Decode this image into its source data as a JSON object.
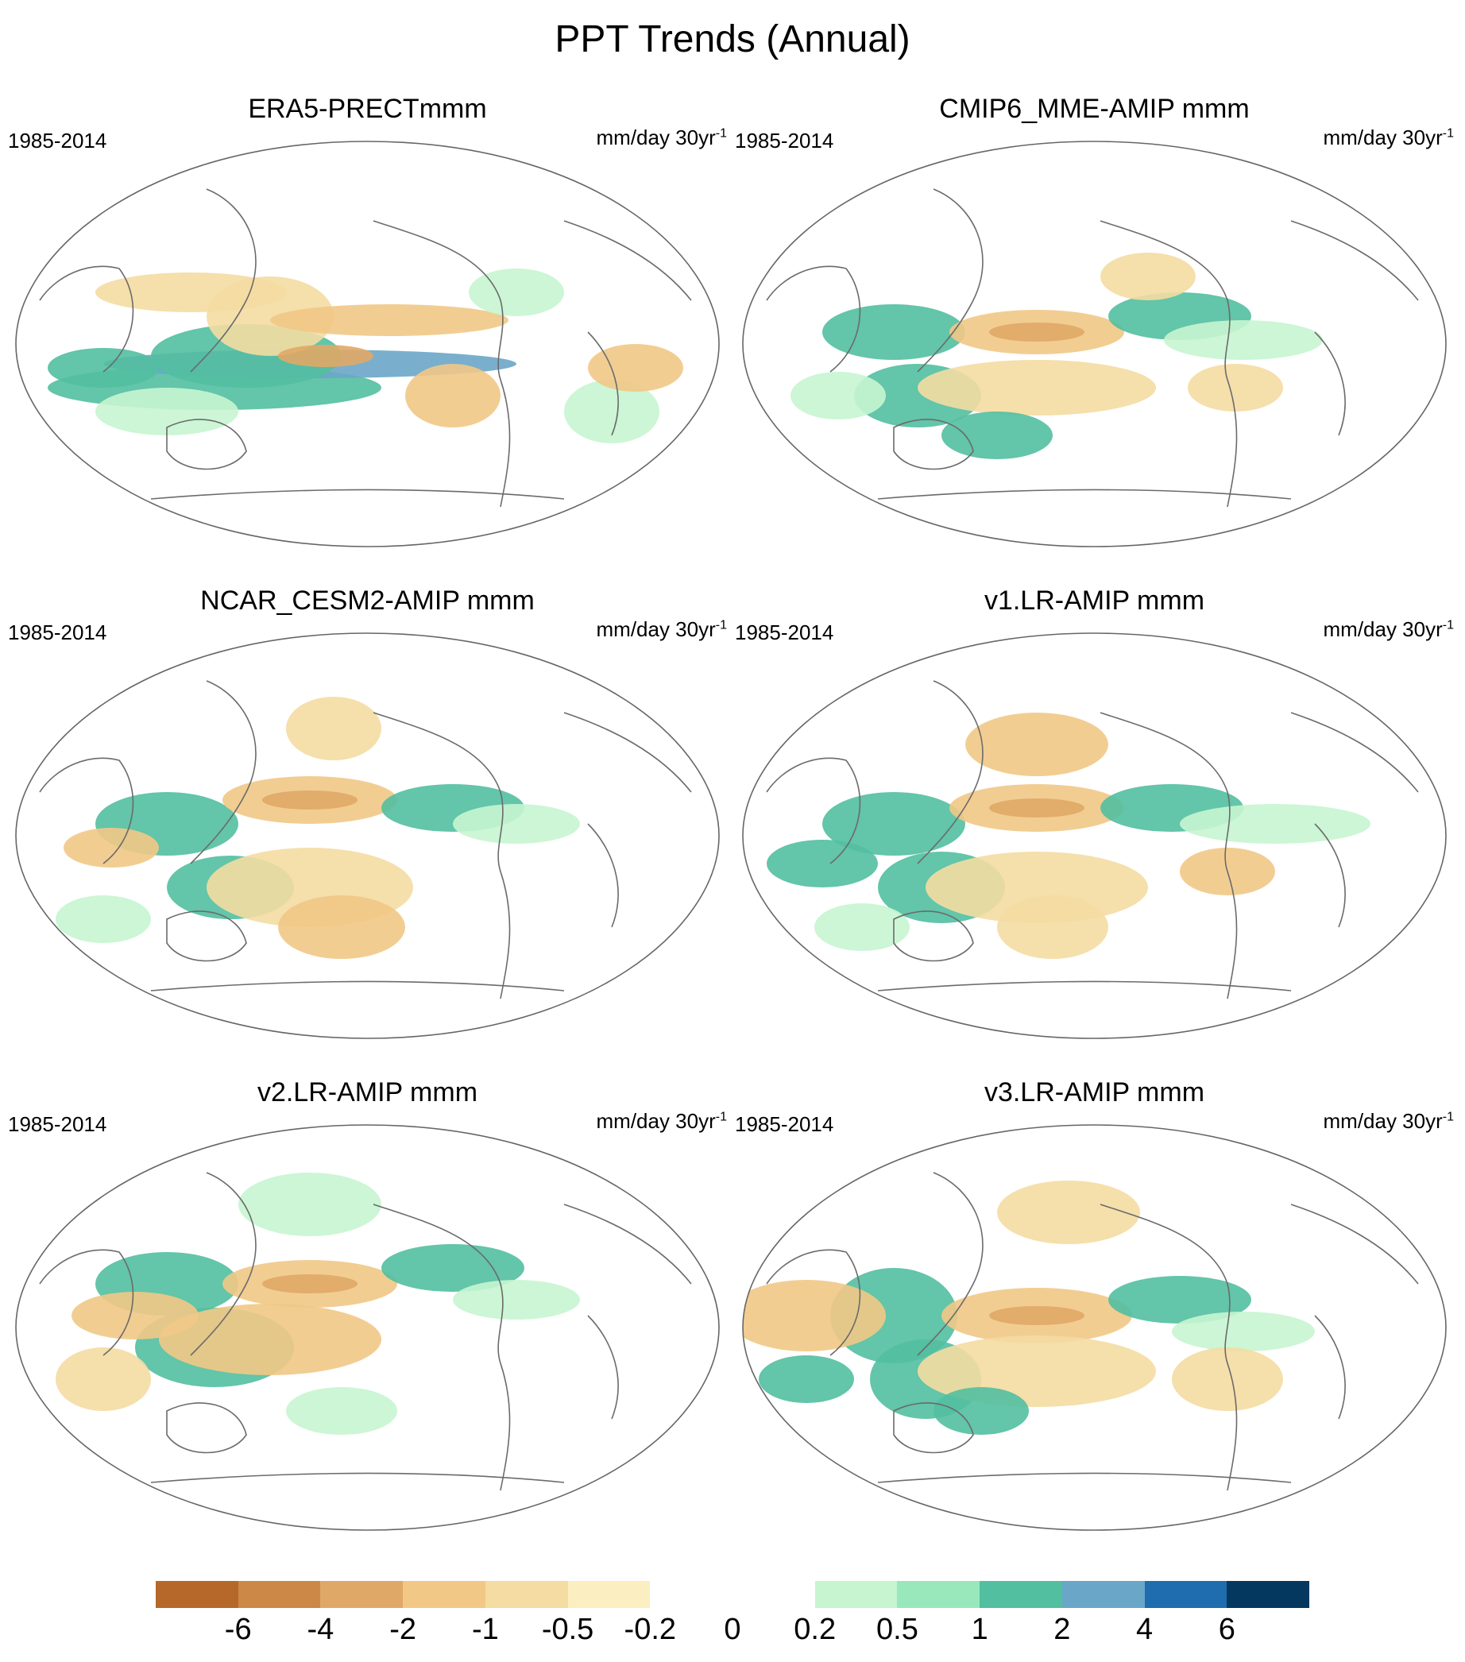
{
  "title": "PPT Trends (Annual)",
  "panels": [
    {
      "title": "ERA5-PRECTmmm",
      "period": "1985-2014",
      "units": "mm/day 30yr",
      "units_exp": "-1"
    },
    {
      "title": "CMIP6_MME-AMIP  mmm",
      "period": "1985-2014",
      "units": "mm/day 30yr",
      "units_exp": "-1"
    },
    {
      "title": "NCAR_CESM2-AMIP  mmm",
      "period": "1985-2014",
      "units": "mm/day 30yr",
      "units_exp": "-1"
    },
    {
      "title": "v1.LR-AMIP  mmm",
      "period": "1985-2014",
      "units": "mm/day 30yr",
      "units_exp": "-1"
    },
    {
      "title": "v2.LR-AMIP  mmm",
      "period": "1985-2014",
      "units": "mm/day 30yr",
      "units_exp": "-1"
    },
    {
      "title": "v3.LR-AMIP  mmm",
      "period": "1985-2014",
      "units": "mm/day 30yr",
      "units_exp": "-1"
    }
  ],
  "colorbar": {
    "colors": [
      "#b5682a",
      "#cc8846",
      "#e0a866",
      "#f1c886",
      "#f4dca2",
      "#fbeec0",
      "#ffffff",
      "#ffffff",
      "#c6f5d0",
      "#98e8bc",
      "#52bfa0",
      "#6aa6c8",
      "#1f6cae",
      "#04385e"
    ],
    "labels": [
      "-6",
      "-4",
      "-2",
      "-1",
      "-0.5",
      "-0.2",
      "0",
      "0.2",
      "0.5",
      "1",
      "2",
      "4",
      "6"
    ]
  }
}
